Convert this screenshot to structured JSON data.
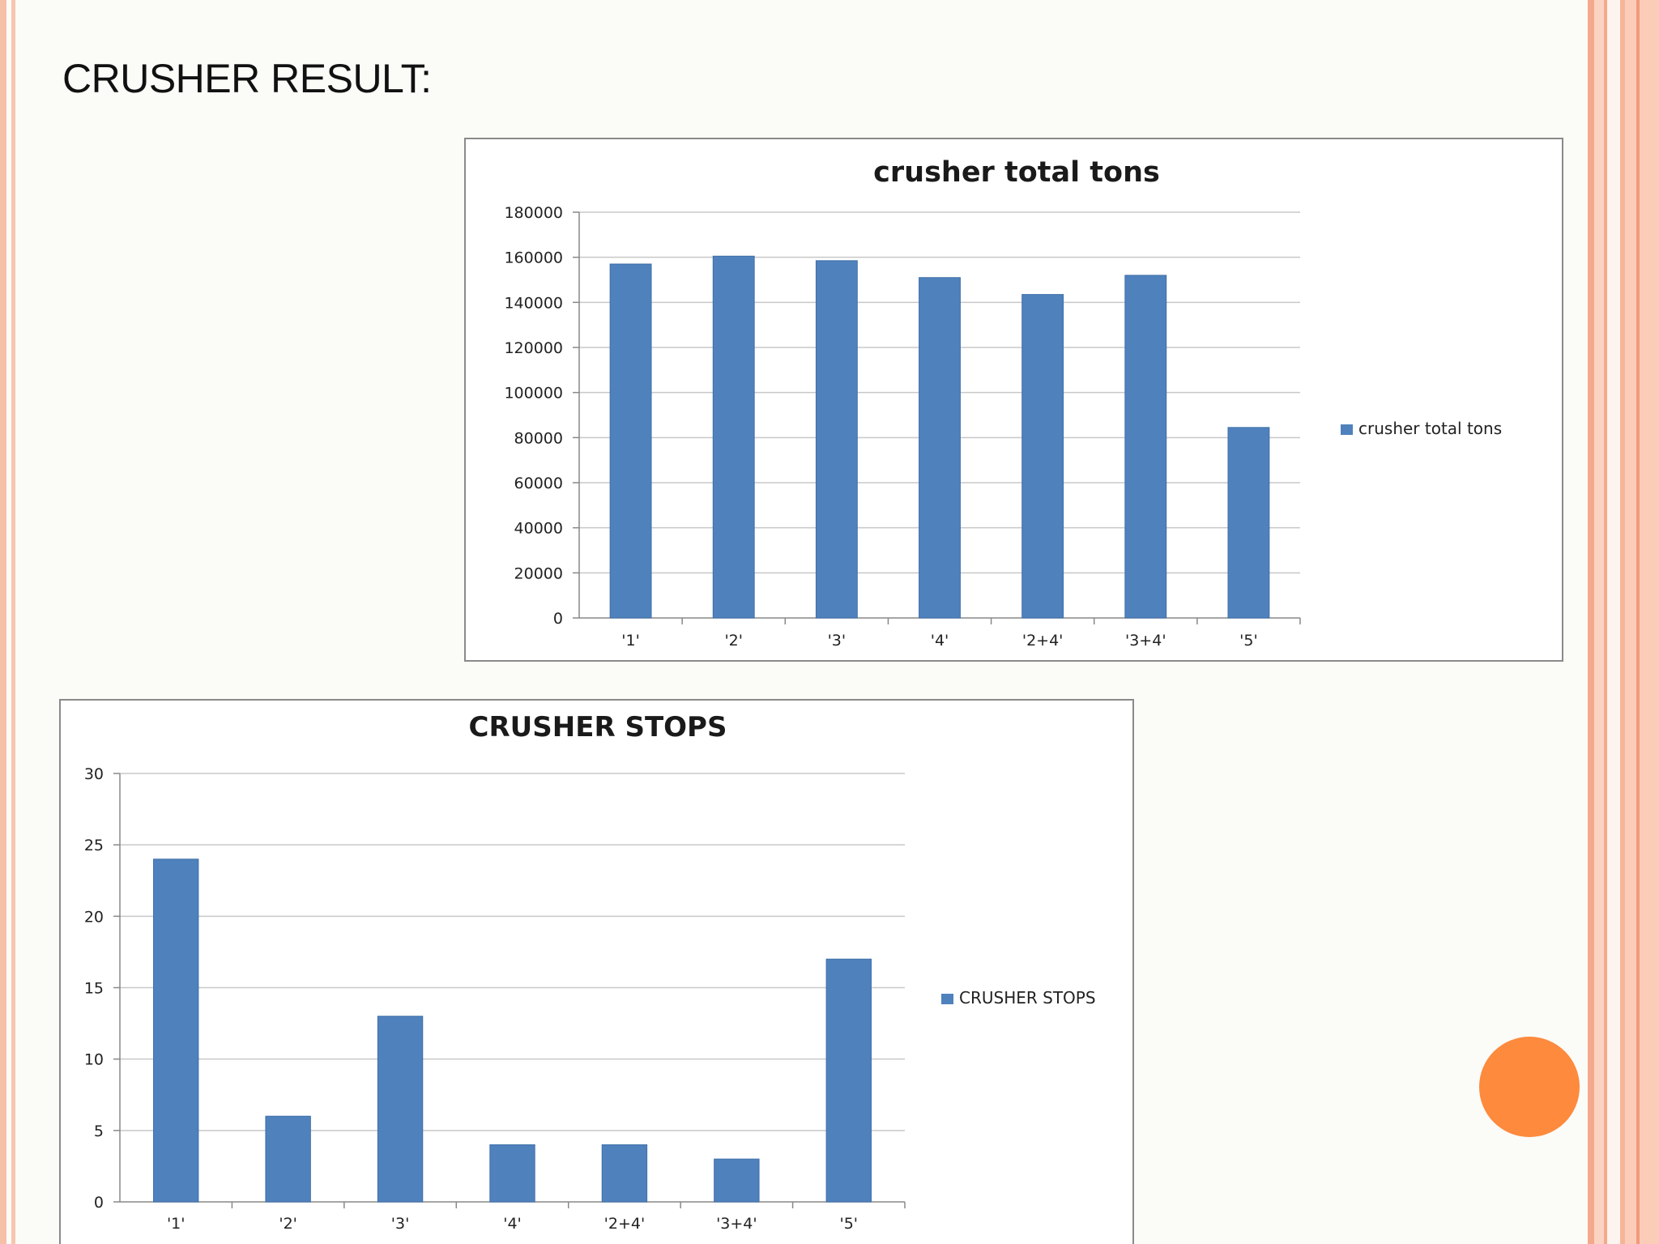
{
  "slide": {
    "title": "CRUSHER RESULT:",
    "accent_color": "#fd8a3d",
    "border_color": "#f6c0a8"
  },
  "chart_data": [
    {
      "type": "bar",
      "title": "crusher total tons",
      "categories": [
        "'1'",
        "'2'",
        "'3'",
        "'4'",
        "'2+4'",
        "'3+4'",
        "'5'"
      ],
      "series": [
        {
          "name": "crusher total tons",
          "values": [
            157000,
            160500,
            158500,
            151000,
            143500,
            152000,
            84500
          ],
          "color": "#4f81bd"
        }
      ],
      "ylim": [
        0,
        180000
      ],
      "yticks": [
        "0",
        "20000",
        "40000",
        "60000",
        "80000",
        "100000",
        "120000",
        "140000",
        "160000",
        "180000"
      ],
      "grid": true,
      "legend": "right"
    },
    {
      "type": "bar",
      "title": "CRUSHER STOPS",
      "categories": [
        "'1'",
        "'2'",
        "'3'",
        "'4'",
        "'2+4'",
        "'3+4'",
        "'5'"
      ],
      "series": [
        {
          "name": "CRUSHER STOPS",
          "values": [
            24,
            6,
            13,
            4,
            4,
            3,
            17
          ],
          "color": "#4f81bd"
        }
      ],
      "ylim": [
        0,
        30
      ],
      "yticks": [
        "0",
        "5",
        "10",
        "15",
        "20",
        "25",
        "30"
      ],
      "grid": true,
      "legend": "right"
    }
  ]
}
